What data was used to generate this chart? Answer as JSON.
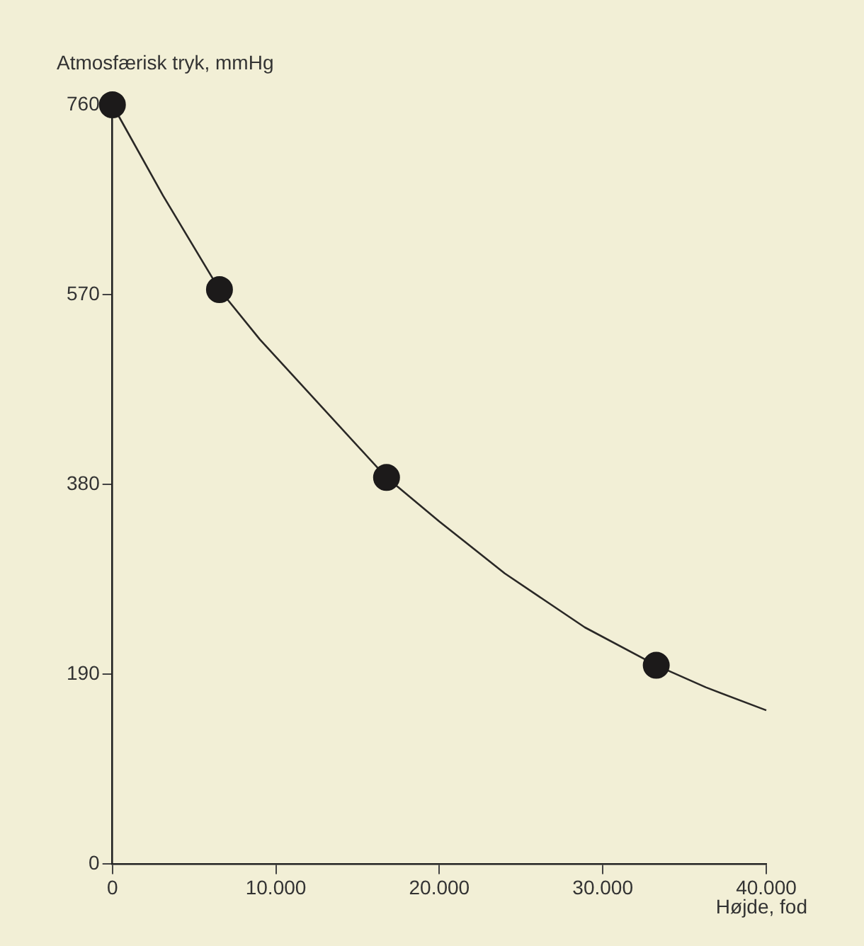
{
  "chart_data": {
    "type": "line",
    "ylabel": "Atmosfærisk tryk, mmHg",
    "xlabel": "Højde, fod",
    "xlim": [
      0,
      40000
    ],
    "xticks": [
      0,
      {
        "value": 10000,
        "label": "10.000"
      },
      {
        "value": 20000,
        "label": "20.000"
      },
      {
        "value": 30000,
        "label": "30.000"
      },
      {
        "value": 40000,
        "label": "40.000"
      }
    ],
    "ylim": [
      0,
      760
    ],
    "yticks": [
      0,
      190,
      380,
      570,
      760
    ],
    "grid": false,
    "legend": false,
    "series": [
      {
        "type": "line",
        "color": "#2a2826",
        "marker": "none",
        "x": [
          0,
          3100,
          6550,
          9030,
          16770,
          20000,
          24000,
          28900,
          33270,
          36300,
          40000
        ],
        "values": [
          760,
          669,
          575,
          525,
          387,
          343,
          291,
          237,
          199,
          177,
          154
        ]
      },
      {
        "type": "scatter",
        "color": "#1c1a1a",
        "marker": "circle",
        "x": [
          0,
          6550,
          16770,
          33270
        ],
        "values": [
          760,
          575,
          387,
          199
        ]
      }
    ]
  }
}
